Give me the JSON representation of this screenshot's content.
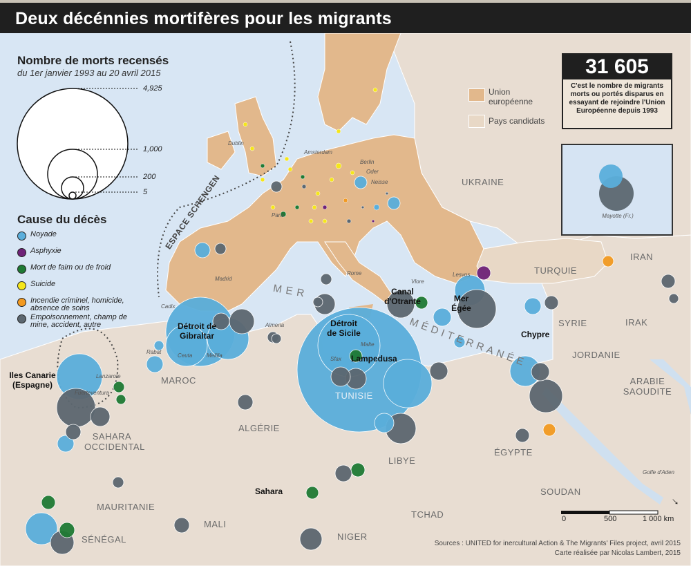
{
  "title": "Deux décénnies mortifères pour les migrants",
  "legend_size": {
    "title": "Nombre de morts recensés",
    "subtitle": "du 1er janvier 1993 au 20 avril 2015",
    "values": [
      "4,925",
      "1,000",
      "200",
      "5"
    ]
  },
  "legend_cause": {
    "title": "Cause du décès",
    "items": [
      {
        "label": "Noyade",
        "color": "#5aaedb"
      },
      {
        "label": "Asphyxie",
        "color": "#6e2277"
      },
      {
        "label": "Mort de faim ou de froid",
        "color": "#1f7a34"
      },
      {
        "label": "Suicide",
        "color": "#f5e61a"
      },
      {
        "label": "Incendie criminel, homicide, absence de soins",
        "color": "#f29a22"
      },
      {
        "label": "Empoisonnement, champ de mine, accident, autre",
        "color": "#5c6770"
      }
    ]
  },
  "legend_zones": [
    {
      "label": "Union européenne",
      "color": "#e2b88c"
    },
    {
      "label": "Pays candidats",
      "color": "#e8d8c6"
    }
  ],
  "headline": {
    "number": "31 605",
    "text": "C'est le nombre de migrants morts ou portés disparus en essayant de rejoindre l'Union Européenne depuis 1993"
  },
  "inset": {
    "label": "Mayotte (Fr.)"
  },
  "countries": [
    "UKRAINE",
    "TURQUIE",
    "IRAN",
    "SYRIE",
    "IRAK",
    "JORDANIE",
    "ARABIE SAOUDITE",
    "MAROC",
    "ALGÉRIE",
    "TUNISIE",
    "LIBYE",
    "ÉGYPTE",
    "SAHARA OCCIDENTAL",
    "MAURITANIE",
    "MALI",
    "NIGER",
    "TCHAD",
    "SOUDAN",
    "SÉNÉGAL"
  ],
  "regions": [
    "Détroit de Gibraltar",
    "Détroit de Sicile",
    "Canal d'Otrante",
    "Mer Égée",
    "Lampedusa",
    "Chypre",
    "Iles Canarie (Espagne)",
    "Sahara"
  ],
  "sea": {
    "mer": "MER",
    "med": "MÉDITERRANÉE"
  },
  "schengen": "ESPACE SCHENGEN",
  "cities": [
    "Dublin",
    "Amsterdam",
    "Berlin",
    "Oder",
    "Neisse",
    "Paris",
    "Madrid",
    "Rome",
    "Vlore",
    "Cadix",
    "Almeria",
    "Rabat",
    "Ceuta",
    "Melilla",
    "Sfax",
    "Malte",
    "Lanzarote",
    "Fuerteventura",
    "Lesvos",
    "Golfe d'Aden"
  ],
  "scale": {
    "labels": [
      "0",
      "500",
      "1 000 km"
    ]
  },
  "sources": {
    "line1": "Sources : UNITED for inercultural Action & The Migrants' Files project, avril 2015",
    "line2": "Carte réalisée par Nicolas Lambert, 2015"
  }
}
